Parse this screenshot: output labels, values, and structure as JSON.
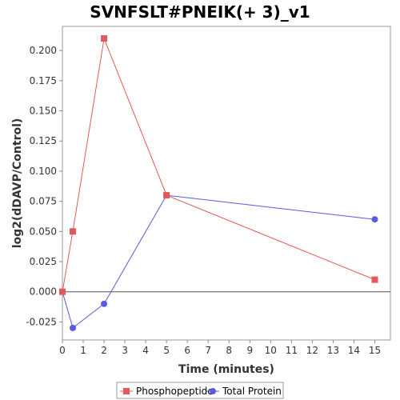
{
  "chart_data": {
    "type": "line",
    "title": "SVNFSLT#PNEIK(+ 3)_v1",
    "xlabel": "Time (minutes)",
    "ylabel": "log2(dDAVP/Control)",
    "xlim": [
      0,
      15.75
    ],
    "ylim": [
      -0.04,
      0.22
    ],
    "x_ticks": [
      0,
      1,
      2,
      3,
      4,
      5,
      6,
      7,
      8,
      9,
      10,
      11,
      12,
      13,
      14,
      15
    ],
    "y_ticks": [
      -0.025,
      0.0,
      0.025,
      0.05,
      0.075,
      0.1,
      0.125,
      0.15,
      0.175,
      0.2
    ],
    "y_tick_labels": [
      "-0.025",
      "0.000",
      "0.025",
      "0.050",
      "0.075",
      "0.100",
      "0.125",
      "0.150",
      "0.175",
      "0.200"
    ],
    "grid": false,
    "legend_position": "bottom",
    "series": [
      {
        "name": "Phosphopeptide",
        "color": "#e05a5a",
        "marker": "square",
        "x": [
          0,
          0.5,
          2,
          5,
          15
        ],
        "values": [
          0.0,
          0.05,
          0.21,
          0.08,
          0.01
        ]
      },
      {
        "name": "Total Protein",
        "color": "#5a5ae0",
        "marker": "circle",
        "x": [
          0,
          0.5,
          2,
          5,
          15
        ],
        "values": [
          0.0,
          -0.03,
          -0.01,
          0.08,
          0.06
        ]
      }
    ]
  }
}
